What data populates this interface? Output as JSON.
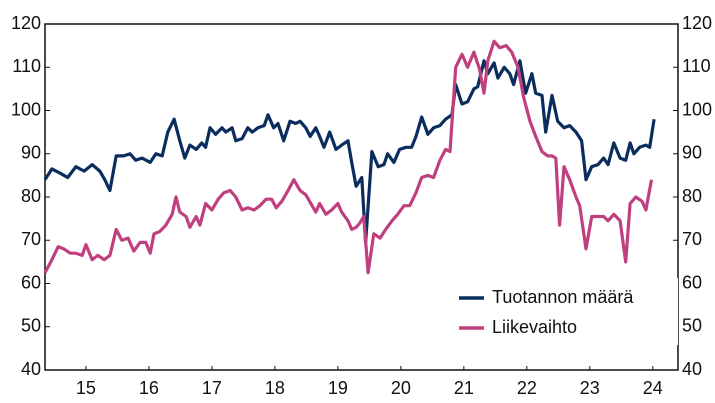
{
  "chart_data": {
    "type": "line",
    "xlim": [
      2014.85,
      2024.9
    ],
    "xticks": [
      {
        "value": 2015.5,
        "label": "15"
      },
      {
        "value": 2016.5,
        "label": "16"
      },
      {
        "value": 2017.5,
        "label": "17"
      },
      {
        "value": 2018.5,
        "label": "18"
      },
      {
        "value": 2019.5,
        "label": "19"
      },
      {
        "value": 2020.5,
        "label": "20"
      },
      {
        "value": 2021.5,
        "label": "21"
      },
      {
        "value": 2022.5,
        "label": "22"
      },
      {
        "value": 2023.5,
        "label": "23"
      },
      {
        "value": 2024.5,
        "label": "24"
      }
    ],
    "ylim": [
      40,
      120
    ],
    "yticks": [
      40,
      50,
      60,
      70,
      80,
      90,
      100,
      110,
      120
    ],
    "y2lim": [
      40,
      120
    ],
    "y2ticks": [
      40,
      50,
      60,
      70,
      80,
      90,
      100,
      110,
      120
    ],
    "legend": "lower right",
    "series": [
      {
        "name": "Tuotannon määrä",
        "color": "#0b2d5e",
        "x": [
          2014.85,
          2014.96,
          2015.09,
          2015.21,
          2015.34,
          2015.47,
          2015.6,
          2015.72,
          2015.8,
          2015.88,
          2015.98,
          2016.1,
          2016.2,
          2016.29,
          2016.39,
          2016.52,
          2016.61,
          2016.71,
          2016.8,
          2016.9,
          2016.99,
          2017.07,
          2017.15,
          2017.25,
          2017.34,
          2017.4,
          2017.47,
          2017.56,
          2017.66,
          2017.72,
          2017.82,
          2017.88,
          2017.98,
          2018.07,
          2018.14,
          2018.23,
          2018.33,
          2018.39,
          2018.48,
          2018.55,
          2018.64,
          2018.74,
          2018.83,
          2018.9,
          2018.99,
          2019.06,
          2019.15,
          2019.21,
          2019.28,
          2019.37,
          2019.47,
          2019.56,
          2019.66,
          2019.72,
          2019.79,
          2019.88,
          2019.94,
          2020.04,
          2020.14,
          2020.23,
          2020.29,
          2020.39,
          2020.48,
          2020.58,
          2020.67,
          2020.74,
          2020.83,
          2020.93,
          2021.02,
          2021.12,
          2021.21,
          2021.31,
          2021.37,
          2021.47,
          2021.56,
          2021.66,
          2021.72,
          2021.82,
          2021.88,
          2021.98,
          2022.04,
          2022.14,
          2022.23,
          2022.29,
          2022.39,
          2022.48,
          2022.58,
          2022.64,
          2022.74,
          2022.8,
          2022.9,
          2022.99,
          2023.09,
          2023.18,
          2023.28,
          2023.37,
          2023.44,
          2023.53,
          2023.63,
          2023.72,
          2023.79,
          2023.88,
          2023.98,
          2024.07,
          2024.14,
          2024.2,
          2024.29,
          2024.39,
          2024.45,
          2024.52
        ],
        "values": [
          84,
          86.5,
          85.5,
          84.5,
          87,
          86,
          87.5,
          86,
          84,
          81.5,
          89.5,
          89.5,
          90,
          88.5,
          89,
          88,
          90,
          89.5,
          95,
          98,
          93,
          89,
          92,
          91,
          92.5,
          91.5,
          96,
          94.5,
          96,
          95,
          96,
          93,
          93.5,
          96,
          95,
          96,
          96.5,
          99,
          96,
          97,
          93,
          97.5,
          97,
          97.5,
          96,
          94,
          96,
          94,
          91.5,
          95,
          91,
          92,
          93,
          88,
          82.5,
          84.5,
          69.5,
          90.5,
          87,
          87.5,
          90,
          88,
          91,
          91.5,
          91.5,
          94,
          98.5,
          94.5,
          96,
          96.5,
          98,
          99,
          106,
          101.5,
          102,
          105,
          105.5,
          111.5,
          108.5,
          111,
          107.5,
          110,
          108.5,
          106,
          111.5,
          104,
          108.5,
          104,
          103.5,
          95,
          103.5,
          97.5,
          96,
          96.5,
          95,
          93,
          84,
          87,
          87.5,
          89,
          87.5,
          92.5,
          89,
          88.5,
          92.5,
          90,
          91.5,
          92,
          91.5,
          98
        ]
      },
      {
        "name": "Liikevaihto",
        "color": "#c0407f",
        "x": [
          2014.85,
          2014.96,
          2015.06,
          2015.15,
          2015.25,
          2015.34,
          2015.44,
          2015.5,
          2015.6,
          2015.69,
          2015.79,
          2015.88,
          2015.98,
          2016.07,
          2016.17,
          2016.26,
          2016.36,
          2016.45,
          2016.52,
          2016.58,
          2016.67,
          2016.77,
          2016.87,
          2016.93,
          2016.99,
          2017.09,
          2017.15,
          2017.25,
          2017.31,
          2017.4,
          2017.5,
          2017.6,
          2017.69,
          2017.79,
          2017.88,
          2017.98,
          2018.07,
          2018.17,
          2018.26,
          2018.36,
          2018.45,
          2018.52,
          2018.61,
          2018.71,
          2018.8,
          2018.9,
          2018.99,
          2019.09,
          2019.15,
          2019.21,
          2019.31,
          2019.4,
          2019.5,
          2019.56,
          2019.66,
          2019.72,
          2019.79,
          2019.85,
          2019.91,
          2019.98,
          2020.07,
          2020.17,
          2020.26,
          2020.36,
          2020.45,
          2020.55,
          2020.64,
          2020.74,
          2020.83,
          2020.93,
          2021.02,
          2021.12,
          2021.21,
          2021.28,
          2021.37,
          2021.47,
          2021.56,
          2021.66,
          2021.75,
          2021.82,
          2021.88,
          2021.98,
          2022.07,
          2022.17,
          2022.26,
          2022.36,
          2022.45,
          2022.55,
          2022.64,
          2022.74,
          2022.83,
          2022.9,
          2022.96,
          2023.02,
          2023.09,
          2023.18,
          2023.28,
          2023.34,
          2023.44,
          2023.53,
          2023.63,
          2023.72,
          2023.79,
          2023.88,
          2023.98,
          2024.07,
          2024.14,
          2024.23,
          2024.33,
          2024.39,
          2024.48
        ],
        "values": [
          62.5,
          65.5,
          68.5,
          68,
          67,
          67,
          66.5,
          69,
          65.5,
          66.5,
          65.5,
          66.5,
          72.5,
          70,
          70.5,
          67.5,
          69.5,
          69.5,
          67,
          71.5,
          72,
          73.5,
          76,
          80,
          76.5,
          75.5,
          73,
          75.5,
          73.5,
          78.5,
          77,
          79.5,
          81,
          81.5,
          80,
          77,
          77.5,
          77,
          78,
          79.5,
          79.5,
          77.5,
          79,
          81.5,
          84,
          81.5,
          80.5,
          78,
          76.5,
          78.5,
          76,
          77,
          78.5,
          76.5,
          74.5,
          72.5,
          73,
          74,
          75.5,
          62.5,
          71.5,
          70.5,
          72.5,
          74.5,
          76,
          78,
          78,
          81,
          84.5,
          85,
          84.5,
          88.5,
          91,
          90.5,
          110,
          113,
          110,
          113.5,
          109.5,
          104,
          111.5,
          116,
          114.5,
          115,
          113.5,
          110,
          103,
          97.5,
          94,
          90.5,
          89.5,
          89.5,
          89,
          73.5,
          87,
          84,
          80,
          78,
          68,
          75.5,
          75.5,
          75.5,
          74.5,
          76,
          74.5,
          65,
          78.5,
          80,
          79,
          77,
          84
        ]
      }
    ]
  }
}
